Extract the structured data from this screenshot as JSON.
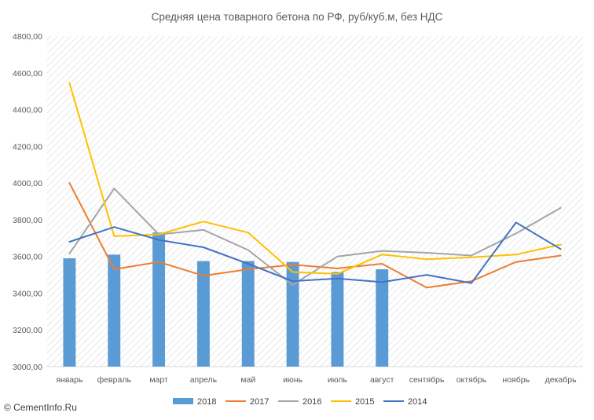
{
  "chart_data": {
    "type": "bar+line",
    "title": "Средняя цена товарного бетона по РФ, руб/куб.м, без НДС",
    "categories": [
      "январь",
      "февраль",
      "март",
      "апрель",
      "май",
      "июнь",
      "июль",
      "август",
      "сентябрь",
      "октябрь",
      "ноябрь",
      "декабрь"
    ],
    "y_ticks": [
      "3000,00",
      "3200,00",
      "3400,00",
      "3600,00",
      "3800,00",
      "4000,00",
      "4200,00",
      "4400,00",
      "4600,00",
      "4800,00"
    ],
    "ylim": [
      3000,
      4800
    ],
    "grid": "diagonal hatch background, no gridlines",
    "legend": "bottom",
    "series": [
      {
        "name": "2018",
        "kind": "bar",
        "color": "#5b9bd5",
        "values": [
          3590,
          3610,
          3730,
          3575,
          3575,
          3570,
          3515,
          3530,
          null,
          null,
          null,
          null
        ]
      },
      {
        "name": "2017",
        "kind": "line",
        "color": "#ed7d31",
        "values": [
          4000,
          3530,
          3570,
          3495,
          3530,
          3555,
          3535,
          3560,
          3430,
          3465,
          3570,
          3605
        ]
      },
      {
        "name": "2016",
        "kind": "line",
        "color": "#a5a5a5",
        "values": [
          3615,
          3970,
          3720,
          3745,
          3635,
          3445,
          3600,
          3630,
          3620,
          3605,
          3725,
          3865
        ]
      },
      {
        "name": "2015",
        "kind": "line",
        "color": "#ffc000",
        "values": [
          4545,
          3710,
          3720,
          3790,
          3730,
          3515,
          3505,
          3610,
          3585,
          3595,
          3610,
          3665
        ]
      },
      {
        "name": "2014",
        "kind": "line",
        "color": "#4472c4",
        "values": [
          3680,
          3760,
          3690,
          3650,
          3560,
          3465,
          3480,
          3460,
          3500,
          3455,
          3785,
          3640
        ]
      }
    ]
  },
  "watermark": {
    "text": "© CementInfo.Ru"
  }
}
